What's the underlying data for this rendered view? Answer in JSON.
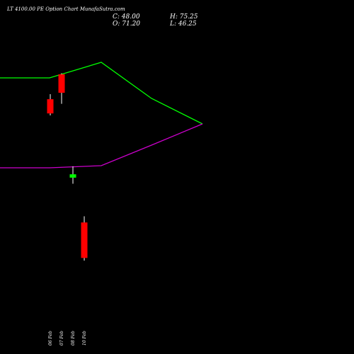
{
  "header": {
    "title": "LT 4100.00 PE Option Chart MunafaSutra.com",
    "close_label": "C: 48.00",
    "open_label": "O: 71.20",
    "high_label": "H: 75.25",
    "low_label": "L: 46.25"
  },
  "colors": {
    "background": "#000000",
    "upper_band": "#00ff00",
    "lower_band": "#cc00cc",
    "bear_candle": "#ff0000",
    "bull_candle": "#00ff00",
    "text": "#ffffff"
  },
  "chart_data": {
    "type": "candlestick",
    "title": "LT 4100.00 PE Option Chart MunafaSutra.com",
    "ylim": [
      30,
      220
    ],
    "candles": [
      {
        "date": "06 Feb",
        "open": 151.8,
        "high": 155.1,
        "low": 141.2,
        "close": 142.5
      },
      {
        "date": "07 Feb",
        "open": 168.1,
        "high": 168.7,
        "low": 148.8,
        "close": 156.0
      },
      {
        "date": "08 Feb",
        "open": 100.5,
        "high": 107.9,
        "low": 96.5,
        "close": 102.7
      },
      {
        "date": "10 Feb",
        "open": 71.2,
        "high": 75.25,
        "low": 46.25,
        "close": 48.0
      }
    ],
    "upper_band": [
      {
        "x": "06 Feb",
        "y": 390
      },
      {
        "x": "07 Feb",
        "y": 390
      },
      {
        "x": "08 Feb",
        "y": 412
      },
      {
        "x": "09 Feb",
        "y": 361
      },
      {
        "x": "10 Feb",
        "y": 325
      }
    ],
    "lower_band": [
      {
        "x": "06 Feb",
        "y": 263
      },
      {
        "x": "07 Feb",
        "y": 263
      },
      {
        "x": "08 Feb",
        "y": 266
      },
      {
        "x": "09 Feb",
        "y": 295
      },
      {
        "x": "10 Feb",
        "y": 325
      }
    ],
    "x_tick_labels": [
      "06 Feb",
      "07 Feb",
      "08 Feb",
      "10 Feb"
    ],
    "grid": false
  }
}
